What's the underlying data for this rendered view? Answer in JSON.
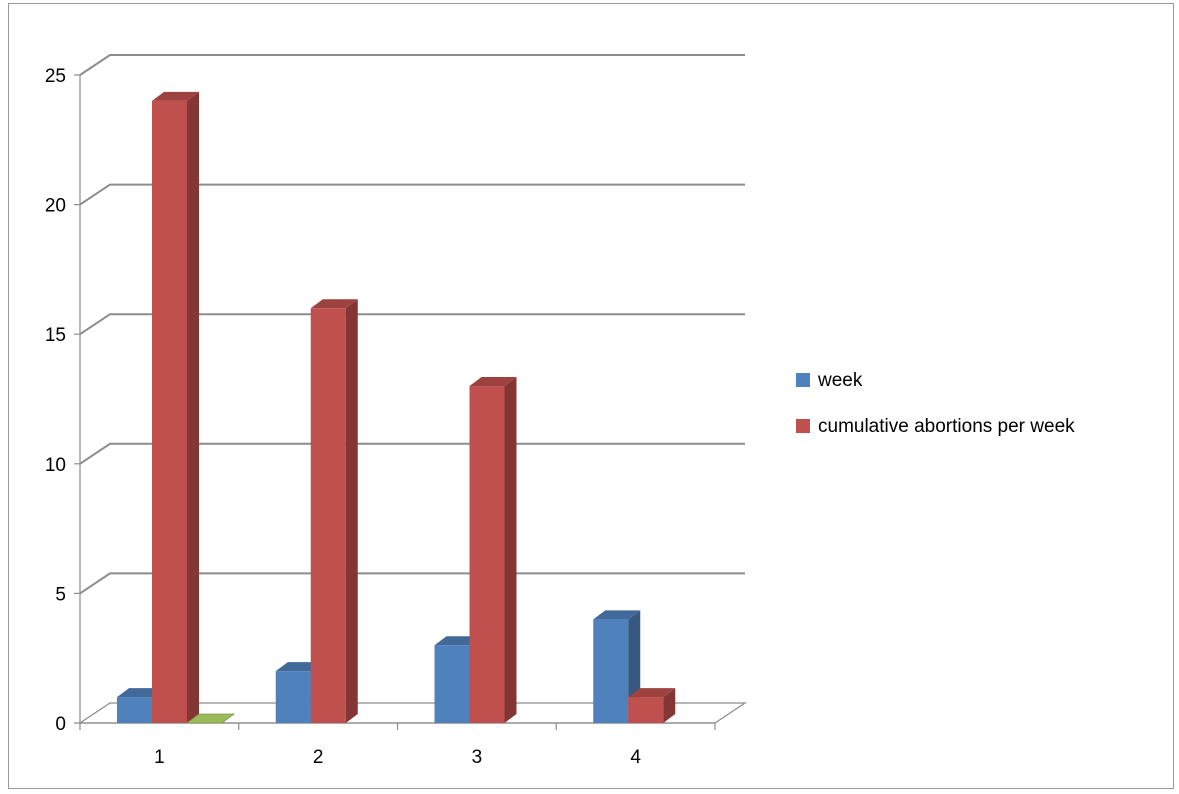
{
  "chart_data": {
    "type": "bar",
    "style": "3d-clustered-column",
    "categories": [
      "1",
      "2",
      "3",
      "4"
    ],
    "series": [
      {
        "name": "week",
        "values": [
          1,
          2,
          3,
          4
        ],
        "color": "#4f81bd"
      },
      {
        "name": "cumulative abortions per week",
        "values": [
          24,
          16,
          13,
          1
        ],
        "color": "#c0504d"
      },
      {
        "name": "",
        "values": [
          0,
          null,
          null,
          null
        ],
        "color": "#9bbb59"
      }
    ],
    "title": "",
    "xlabel": "",
    "ylabel": "",
    "ylim": [
      0,
      25
    ],
    "yticks": [
      "0",
      "5",
      "10",
      "15",
      "20",
      "25"
    ],
    "grid": true,
    "legend_position": "right"
  }
}
